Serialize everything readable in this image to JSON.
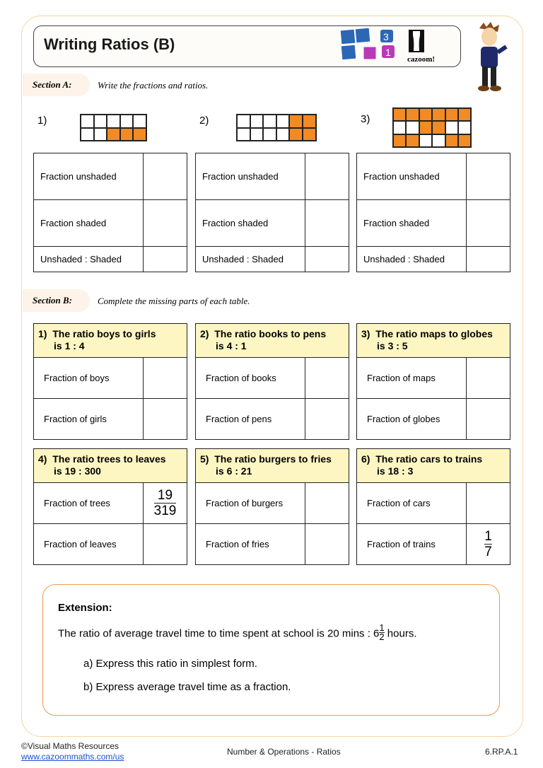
{
  "title": "Writing Ratios (B)",
  "logo": {
    "text": "cazoom!",
    "tiles": [
      "3",
      "1"
    ]
  },
  "sectionA": {
    "label": "Section A:",
    "instruction": "Write the fractions and ratios.",
    "rows": [
      "Fraction unshaded",
      "Fraction shaded",
      "Unshaded : Shaded"
    ],
    "questions": [
      {
        "num": "1)",
        "grid": {
          "rows": 2,
          "cols": 5,
          "shaded": [
            [
              1,
              2
            ],
            [
              1,
              3
            ],
            [
              1,
              4
            ]
          ]
        }
      },
      {
        "num": "2)",
        "grid": {
          "rows": 2,
          "cols": 6,
          "shaded": [
            [
              0,
              4
            ],
            [
              0,
              5
            ],
            [
              1,
              4
            ],
            [
              1,
              5
            ]
          ]
        }
      },
      {
        "num": "3)",
        "grid": {
          "rows": 3,
          "cols": 6,
          "shaded": [
            [
              0,
              0
            ],
            [
              0,
              1
            ],
            [
              0,
              2
            ],
            [
              0,
              3
            ],
            [
              0,
              4
            ],
            [
              0,
              5
            ],
            [
              1,
              2
            ],
            [
              1,
              3
            ],
            [
              2,
              0
            ],
            [
              2,
              1
            ],
            [
              2,
              4
            ],
            [
              2,
              5
            ]
          ]
        }
      }
    ]
  },
  "sectionB": {
    "label": "Section B:",
    "instruction": "Complete the missing parts of each table.",
    "tables": [
      {
        "num": "1)",
        "line1": "The ratio boys to girls",
        "line2": "is 1 : 4",
        "r1": "Fraction of boys",
        "r2": "Fraction of girls"
      },
      {
        "num": "2)",
        "line1": "The ratio books to pens",
        "line2": "is 4 : 1",
        "r1": "Fraction of books",
        "r2": "Fraction of pens"
      },
      {
        "num": "3)",
        "line1": "The ratio maps to globes",
        "line2": "is 3 : 5",
        "r1": "Fraction of maps",
        "r2": "Fraction of globes"
      },
      {
        "num": "4)",
        "line1": "The ratio trees to leaves",
        "line2": "is 19 : 300",
        "r1": "Fraction of trees",
        "r2": "Fraction of leaves",
        "a1n": "19",
        "a1d": "319"
      },
      {
        "num": "5)",
        "line1": "The ratio burgers to fries",
        "line2": "is 6 : 21",
        "r1": "Fraction of burgers",
        "r2": "Fraction of fries"
      },
      {
        "num": "6)",
        "line1": "The ratio cars to trains",
        "line2": "is 18 : 3",
        "r1": "Fraction of cars",
        "r2": "Fraction of trains",
        "a2n": "1",
        "a2d": "7"
      }
    ]
  },
  "extension": {
    "heading": "Extension:",
    "text": "The ratio of average travel time to time spent at school is 20 mins : 6",
    "fnum": "1",
    "fden": "2",
    "after": "hours.",
    "a": "a)  Express this ratio in simplest form.",
    "b": "b)  Express average travel time as a fraction."
  },
  "footer": {
    "copyright": "©Visual Maths Resources",
    "url": "www.cazoommaths.com/us",
    "topic": "Number & Operations - Ratios",
    "code": "6.RP.A.1"
  },
  "colors": {
    "shaded": "#f28a25",
    "header": "#fdf6c3",
    "frame": "#f7d7a0",
    "extension_border": "#ef9b4a"
  }
}
